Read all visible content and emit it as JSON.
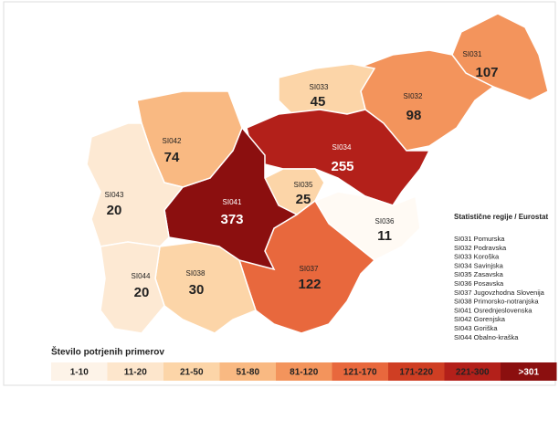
{
  "map": {
    "regions": [
      {
        "code": "SI031",
        "value": 107,
        "color": "#f3945c"
      },
      {
        "code": "SI032",
        "value": 98,
        "color": "#f3945c"
      },
      {
        "code": "SI033",
        "value": 45,
        "color": "#fcd5a8"
      },
      {
        "code": "SI034",
        "value": 255,
        "color": "#b3201a"
      },
      {
        "code": "SI035",
        "value": 25,
        "color": "#fcd5a8"
      },
      {
        "code": "SI036",
        "value": 11,
        "color": "#fffaf4"
      },
      {
        "code": "SI037",
        "value": 122,
        "color": "#e8683d"
      },
      {
        "code": "SI038",
        "value": 30,
        "color": "#fcd5a8"
      },
      {
        "code": "SI041",
        "value": 373,
        "color": "#8b0f0f"
      },
      {
        "code": "SI042",
        "value": 74,
        "color": "#f9b982"
      },
      {
        "code": "SI043",
        "value": 20,
        "color": "#fde9d3"
      },
      {
        "code": "SI044",
        "value": 20,
        "color": "#fde9d3"
      }
    ],
    "legend": {
      "title": "Število potrjenih primerov",
      "bins": [
        {
          "label": "1-10",
          "color": "#fdf3e8"
        },
        {
          "label": "11-20",
          "color": "#fde6cc"
        },
        {
          "label": "21-50",
          "color": "#fcd5a8"
        },
        {
          "label": "51-80",
          "color": "#f9b982"
        },
        {
          "label": "81-120",
          "color": "#f3945c"
        },
        {
          "label": "121-170",
          "color": "#e8683d"
        },
        {
          "label": "171-220",
          "color": "#cf3e23"
        },
        {
          "label": "221-300",
          "color": "#b3201a"
        },
        {
          "label": ">301",
          "color": "#8b0f0f"
        }
      ]
    },
    "key": {
      "title": "Statistične regije / Eurostat",
      "items": [
        "SI031 Pomurska",
        "SI032 Podravska",
        "SI033 Koroška",
        "SI034 Savinjska",
        "SI035 Zasavska",
        "SI036 Posavska",
        "SI037 Jugovzhodna Slovenija",
        "SI038 Primorsko-notranjska",
        "SI041 Osrednjeslovenska",
        "SI042 Gorenjska",
        "SI043 Goriška",
        "SI044 Obalno-kraška"
      ]
    }
  }
}
